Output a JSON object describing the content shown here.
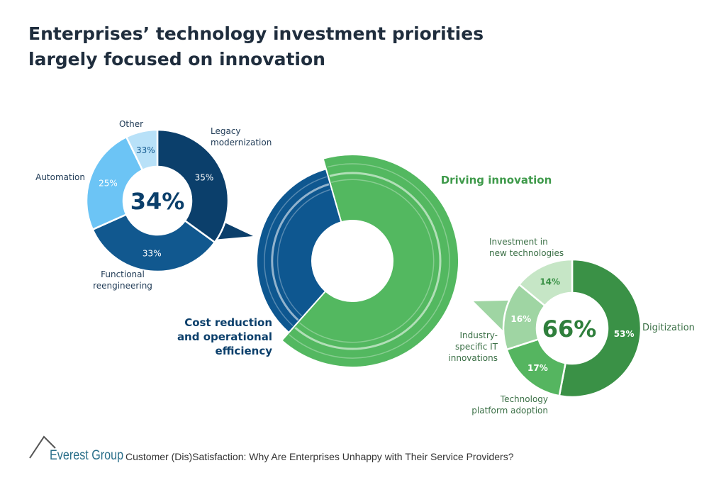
{
  "title": "Enterprises’ technology investment priorities largely focused on innovation",
  "chart_data": [
    {
      "type": "pie",
      "name": "main",
      "categories": [
        "Driving innovation",
        "Cost reduction and operational efficiency"
      ],
      "values": [
        66,
        34
      ],
      "colors": [
        "#53b860",
        "#0e5790"
      ]
    },
    {
      "type": "pie",
      "name": "cost",
      "center_label": "34%",
      "categories": [
        "Legacy modernization",
        "Functional reengineering",
        "Automation",
        "Other"
      ],
      "values": [
        35,
        33,
        25,
        33
      ],
      "labels": [
        "35%",
        "33%",
        "25%",
        "33%"
      ],
      "colors": [
        "#0b3f6b",
        "#11588f",
        "#6cc4f5",
        "#b8e1f8"
      ]
    },
    {
      "type": "pie",
      "name": "innovation",
      "center_label": "66%",
      "categories": [
        "Digitization",
        "Technology platform adoption",
        "Industry-specific IT innovations",
        "Investment in new technologies"
      ],
      "values": [
        53,
        17,
        16,
        14
      ],
      "labels": [
        "53%",
        "17%",
        "16%",
        "14%"
      ],
      "colors": [
        "#3a9146",
        "#55b560",
        "#9fd5a3",
        "#c6e6c6"
      ]
    }
  ],
  "footer": {
    "brand": "Everest Group",
    "source": "Customer (Dis)Satisfaction: Why Are Enterprises Unhappy with Their Service Providers?"
  }
}
